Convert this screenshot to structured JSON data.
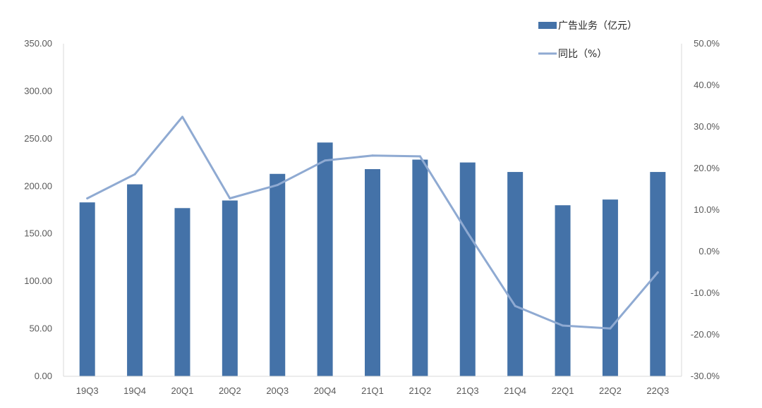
{
  "chart_data": {
    "type": "bar+line",
    "categories": [
      "19Q3",
      "19Q4",
      "20Q1",
      "20Q2",
      "20Q3",
      "20Q4",
      "21Q1",
      "21Q2",
      "21Q3",
      "21Q4",
      "22Q1",
      "22Q2",
      "22Q3"
    ],
    "series": [
      {
        "name": "广告业务（亿元）",
        "type": "bar",
        "axis": "left",
        "color": "#4472a8",
        "values": [
          183,
          202,
          177,
          185,
          213,
          246,
          218,
          228,
          225,
          215,
          180,
          186,
          215
        ]
      },
      {
        "name": "同比（%）",
        "type": "line",
        "axis": "right",
        "color": "#8faad2",
        "values": [
          12.8,
          18.6,
          32.4,
          12.8,
          16.0,
          21.9,
          23.1,
          22.9,
          4.5,
          -13.1,
          -17.8,
          -18.5,
          -5.0
        ]
      }
    ],
    "left_axis": {
      "min": 0,
      "max": 350,
      "step": 50,
      "tick_labels": [
        "0.00",
        "50.00",
        "100.00",
        "150.00",
        "200.00",
        "250.00",
        "300.00",
        "350.00"
      ]
    },
    "right_axis": {
      "min": -30,
      "max": 50,
      "step": 10,
      "tick_labels": [
        "-30.0%",
        "-20.0%",
        "-10.0%",
        "0.0%",
        "10.0%",
        "20.0%",
        "30.0%",
        "40.0%",
        "50.0%"
      ]
    },
    "legend_position": "top-right",
    "grid": false
  }
}
